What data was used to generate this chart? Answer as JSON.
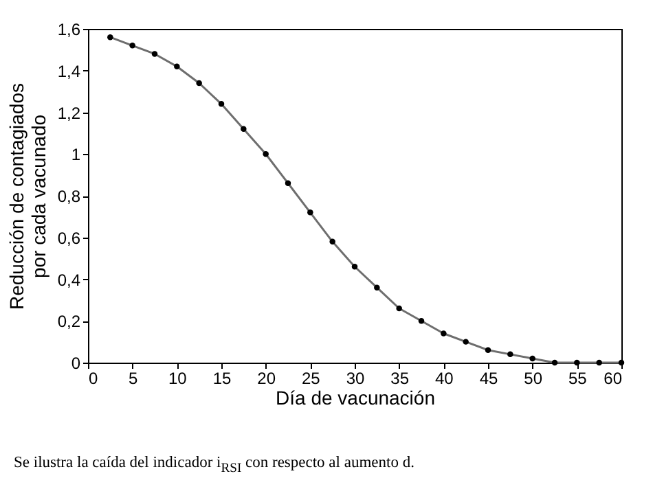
{
  "chart_data": {
    "type": "line",
    "xlabel": "Día de vacunación",
    "ylabel": "Reducción de contagiados\npor cada vacunado",
    "annotations": [
      "Se ilustra la caída del indicador i$_{RSI}$ con respecto al aumento d."
    ],
    "x": [
      2.5,
      5,
      7.5,
      10,
      12.5,
      15,
      17.5,
      20,
      22.5,
      25,
      27.5,
      30,
      32.5,
      35,
      37.5,
      40,
      42.5,
      45,
      47.5,
      50,
      52.5,
      55,
      57.5,
      60
    ],
    "series": [
      {
        "color": "#6e6e6e",
        "values": [
          1.56,
          1.52,
          1.48,
          1.42,
          1.34,
          1.24,
          1.12,
          1.0,
          0.86,
          0.72,
          0.58,
          0.46,
          0.36,
          0.26,
          0.2,
          0.14,
          0.1,
          0.06,
          0.04,
          0.02,
          0,
          0,
          0,
          0
        ]
      }
    ],
    "xlim": [
      0,
      60
    ],
    "xticks": [
      0,
      5,
      10,
      15,
      20,
      25,
      30,
      35,
      40,
      45,
      50,
      55,
      60
    ],
    "ylim": [
      0,
      1.6
    ],
    "yticks": [
      0,
      {
        "value": 0.2,
        "label": "0,2"
      },
      {
        "value": 0.4,
        "label": "0,4"
      },
      {
        "value": 0.6,
        "label": "0,6"
      },
      {
        "value": 0.8,
        "label": "0,8"
      },
      1,
      {
        "value": 1.2,
        "label": "1,2"
      },
      {
        "value": 1.4,
        "label": "1,4"
      },
      {
        "value": 1.6,
        "label": "1,6"
      }
    ],
    "grid": false,
    "marker": "circle",
    "line_style": "solid"
  }
}
